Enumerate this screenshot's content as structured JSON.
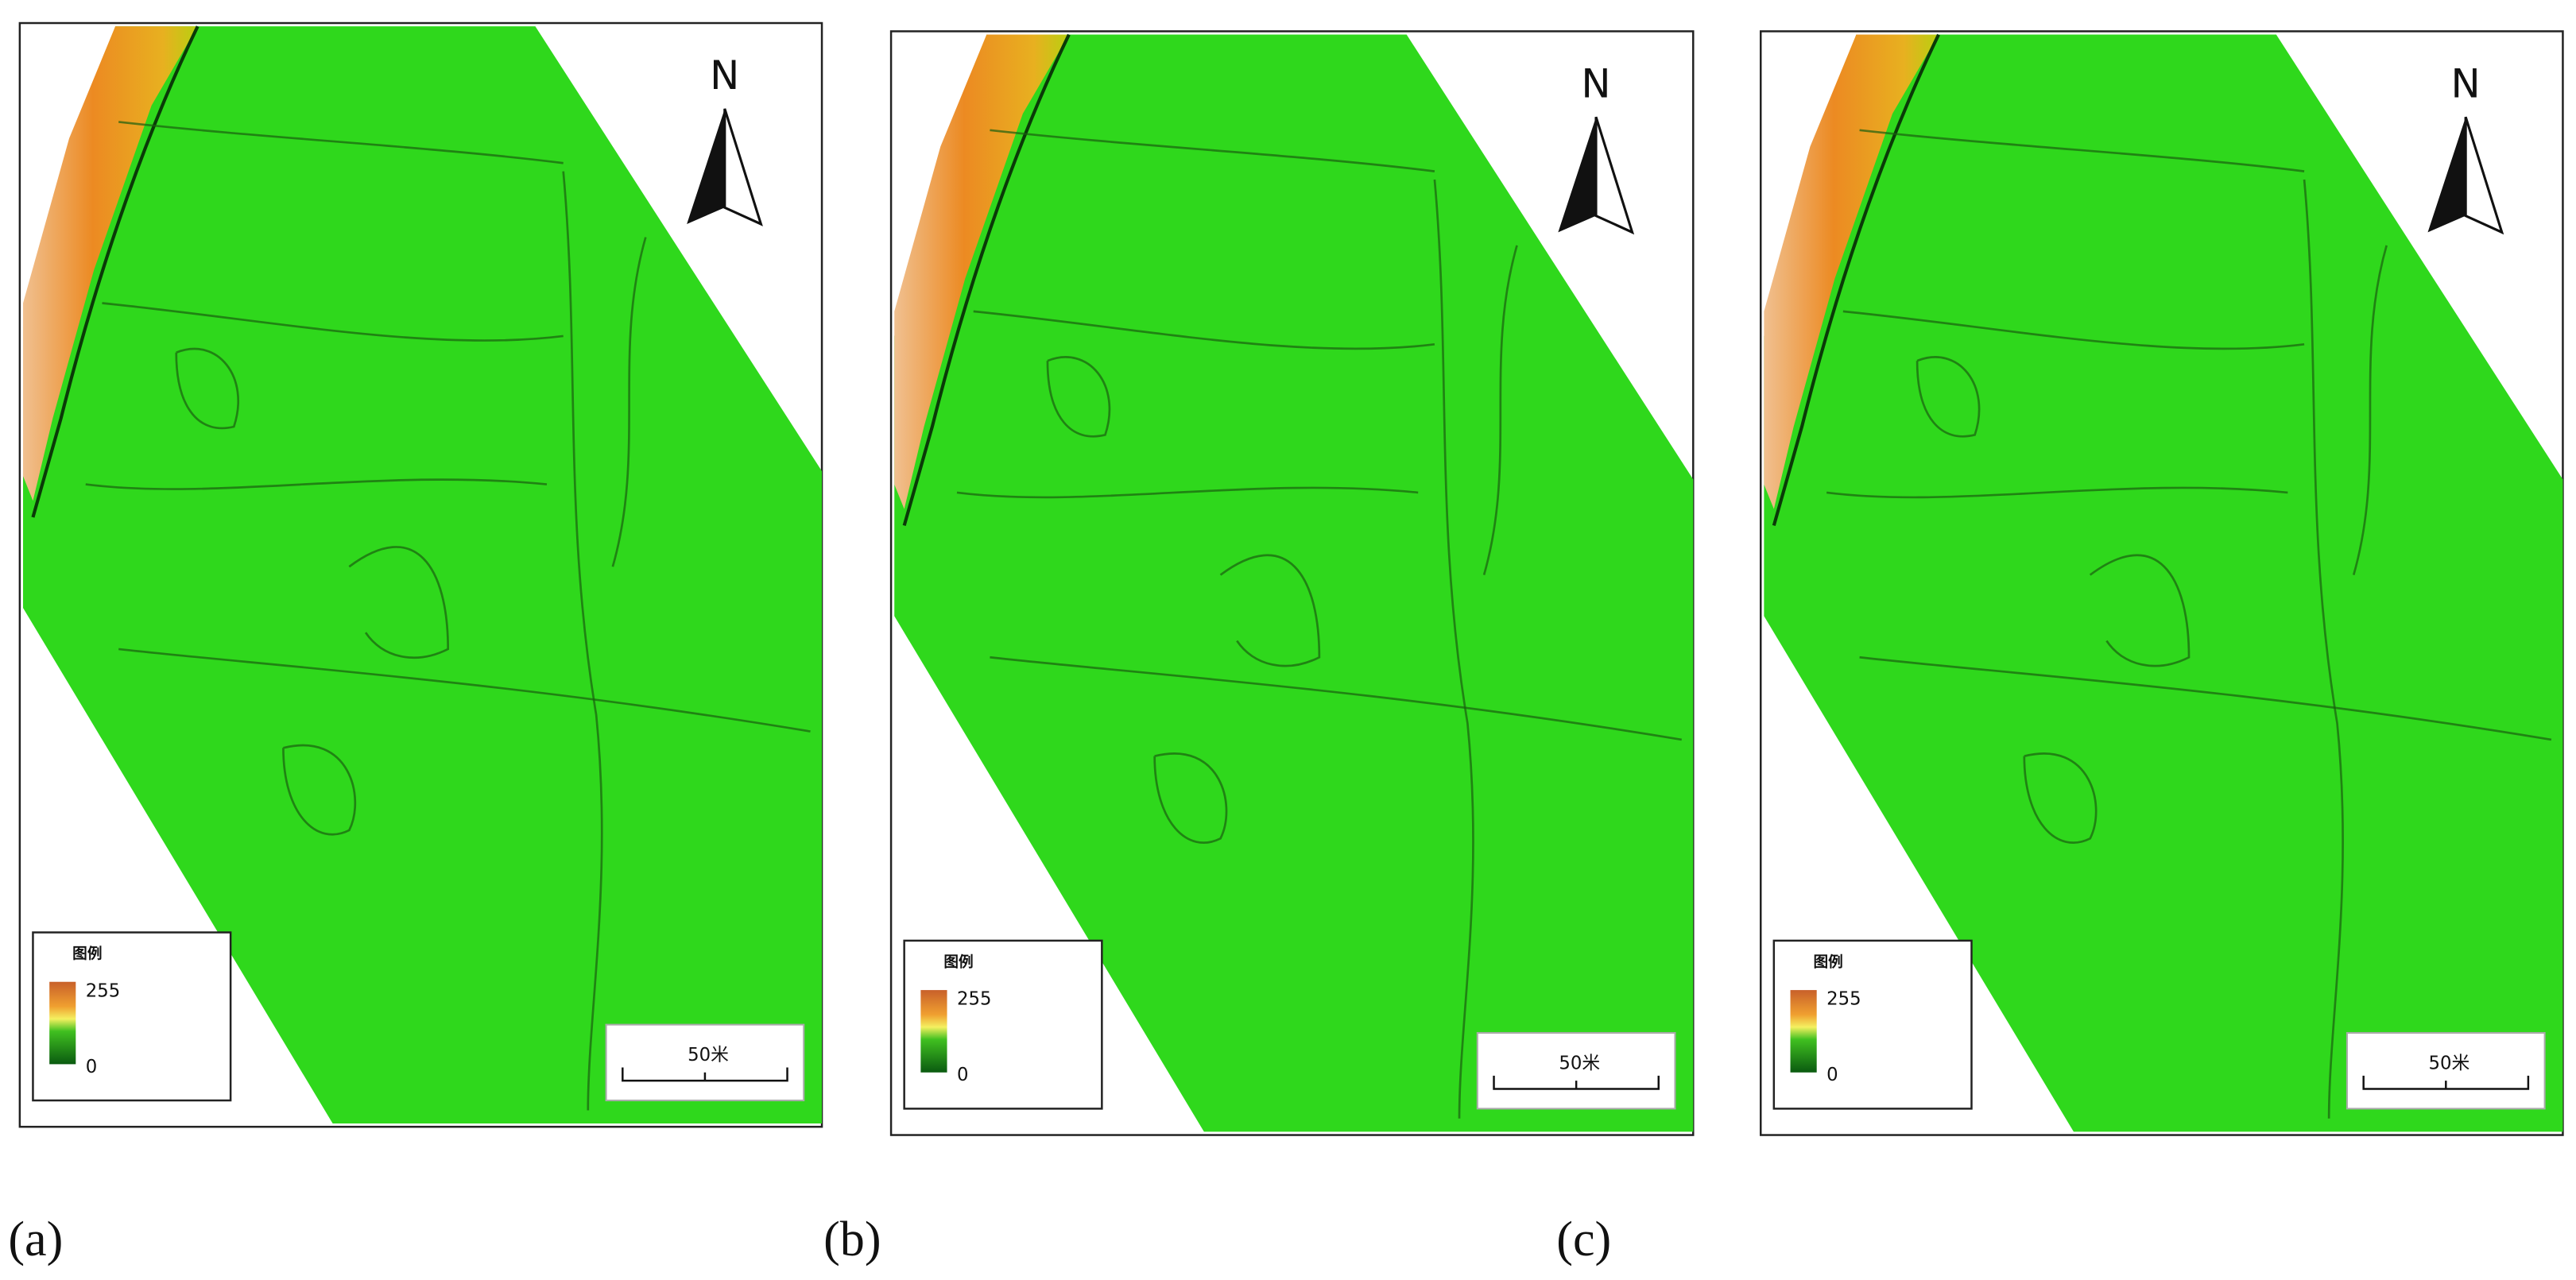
{
  "panels": [
    {
      "label": "(a)",
      "north": "N",
      "legend": {
        "title": "图例",
        "max": 255,
        "min": 0
      },
      "scale": "50米"
    },
    {
      "label": "(b)",
      "north": "N",
      "legend": {
        "title": "图例",
        "max": 255,
        "min": 0
      },
      "scale": "50米"
    },
    {
      "label": "(c)",
      "north": "N",
      "legend": {
        "title": "图例",
        "max": 255,
        "min": 0
      },
      "scale": "50米"
    }
  ]
}
